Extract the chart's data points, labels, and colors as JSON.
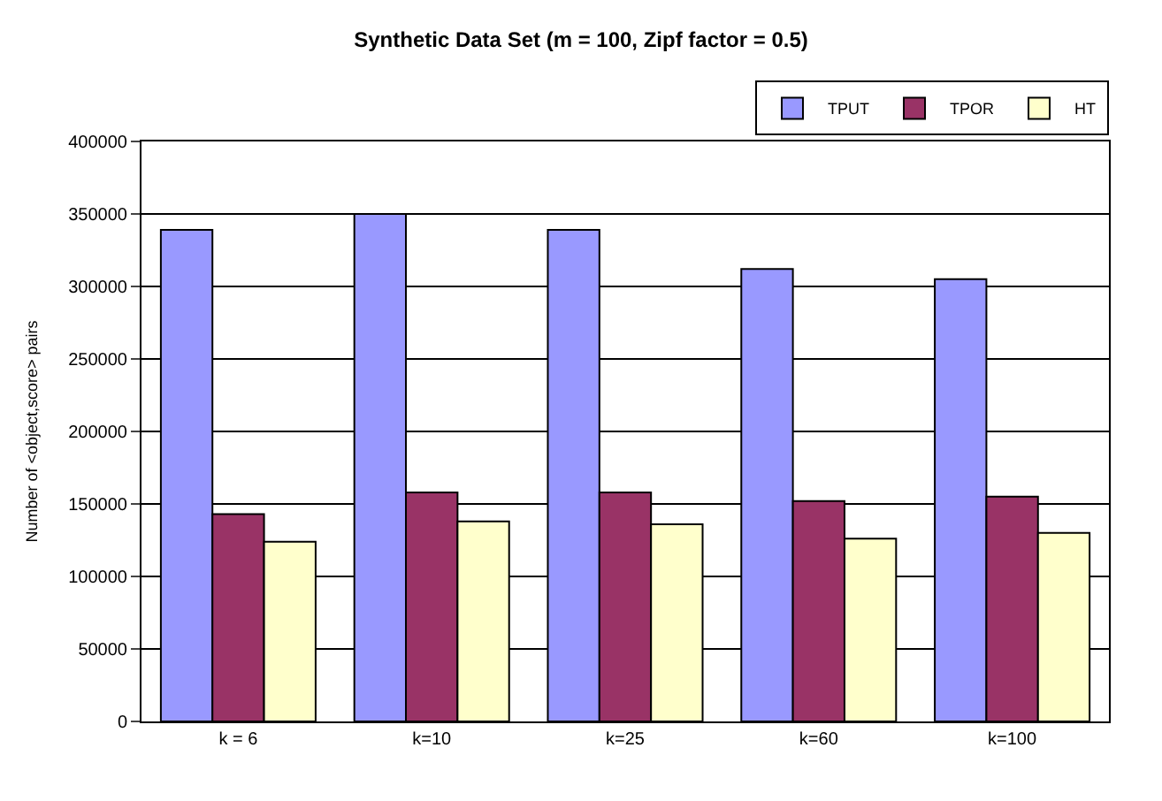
{
  "chart_data": {
    "type": "bar",
    "title": "Synthetic Data Set (m = 100, Zipf factor = 0.5)",
    "ylabel": "Number of <object,score> pairs",
    "categories": [
      "k = 6",
      "k=10",
      "k=25",
      "k=60",
      "k=100"
    ],
    "series": [
      {
        "name": "TPUT",
        "color": "#9999ff",
        "values": [
          339000,
          350000,
          339000,
          312000,
          305000
        ]
      },
      {
        "name": "TPOR",
        "color": "#993366",
        "values": [
          143000,
          158000,
          158000,
          152000,
          155000
        ]
      },
      {
        "name": "HT",
        "color": "#ffffcc",
        "values": [
          124000,
          138000,
          136000,
          126000,
          130000
        ]
      }
    ],
    "ylim": [
      0,
      400000
    ],
    "yticks": [
      0,
      50000,
      100000,
      150000,
      200000,
      250000,
      300000,
      350000,
      400000
    ],
    "grid": "y",
    "legend": "top right"
  }
}
